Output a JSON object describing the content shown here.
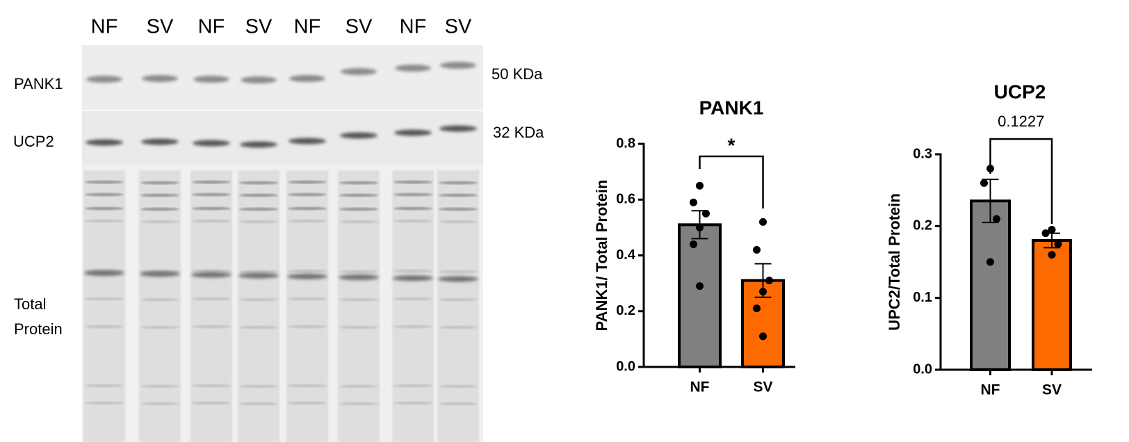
{
  "blot": {
    "lanes": [
      "NF",
      "SV",
      "NF",
      "SV",
      "NF",
      "SV",
      "NF",
      "SV"
    ],
    "rows": [
      "PANK1",
      "UCP2",
      "Total",
      "Protein"
    ],
    "markers": [
      "50 KDa",
      "32 KDa"
    ]
  },
  "chart_data": [
    {
      "type": "bar",
      "title": "PANK1",
      "y_label": "PANK1/ Total Protein",
      "categories": [
        "NF",
        "SV"
      ],
      "values": [
        0.51,
        0.31
      ],
      "errors": [
        0.05,
        0.06
      ],
      "colors": [
        "#808080",
        "#ff6a00"
      ],
      "points": [
        [
          0.65,
          0.59,
          0.55,
          0.5,
          0.44,
          0.29
        ],
        [
          0.52,
          0.42,
          0.31,
          0.27,
          0.21,
          0.11
        ]
      ],
      "annotation": "*",
      "ylim": [
        0,
        0.8
      ],
      "yticks": [
        {
          "value": 0,
          "label": "0.0"
        },
        0.2,
        0.4,
        0.6,
        0.8
      ]
    },
    {
      "type": "bar",
      "title": "UCP2",
      "y_label": "UPC2/Total Protein",
      "categories": [
        "NF",
        "SV"
      ],
      "values": [
        0.235,
        0.18
      ],
      "errors": [
        0.03,
        0.01
      ],
      "colors": [
        "#808080",
        "#ff6a00"
      ],
      "points": [
        [
          0.28,
          0.26,
          0.21,
          0.15
        ],
        [
          0.195,
          0.19,
          0.175,
          0.16
        ]
      ],
      "annotation": "0.1227",
      "ylim": [
        0,
        0.3
      ],
      "yticks": [
        {
          "value": 0,
          "label": "0.0"
        },
        0.1,
        0.2,
        0.3
      ]
    }
  ]
}
